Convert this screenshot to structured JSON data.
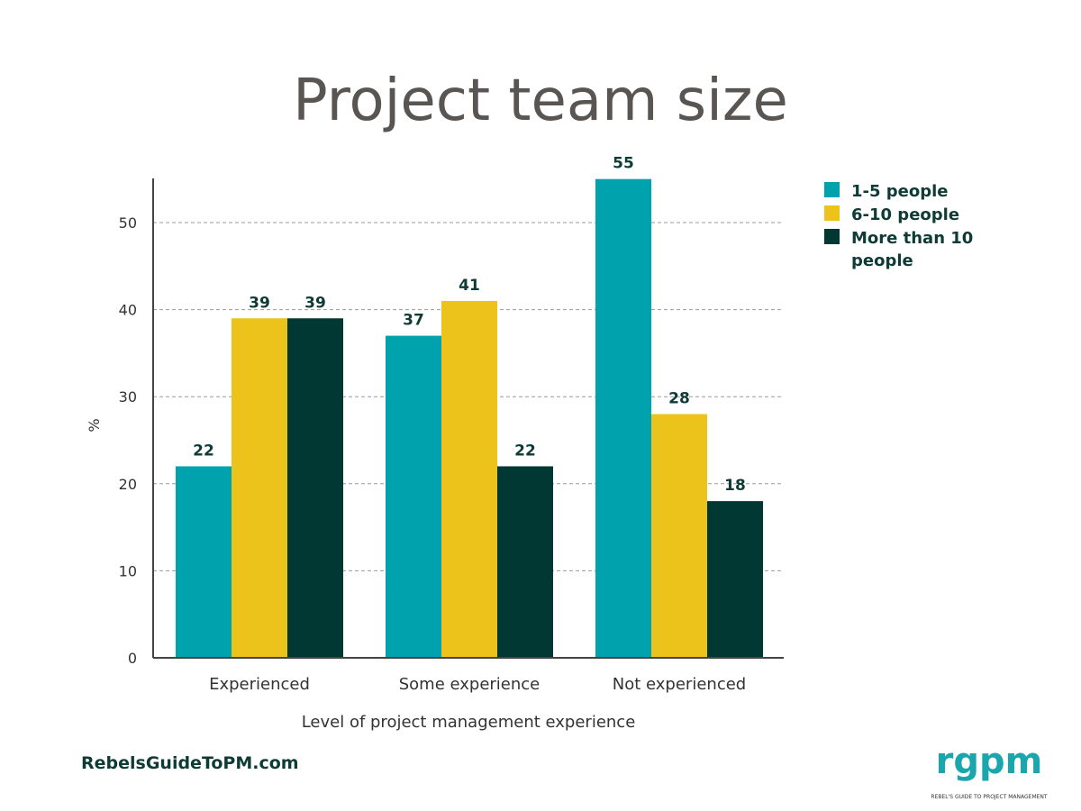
{
  "chart_data": {
    "type": "bar",
    "title": "Project team size",
    "xlabel": "Level of project management experience",
    "ylabel": "%",
    "ylim": [
      0,
      55
    ],
    "yticks": [
      0,
      10,
      20,
      30,
      40,
      50
    ],
    "grid": true,
    "legend_placement": "right",
    "categories": [
      "Experienced",
      "Some experience",
      "Not experienced"
    ],
    "series": [
      {
        "name": "1-5 people",
        "values": [
          22,
          37,
          55
        ],
        "color": "#00a3ad"
      },
      {
        "name": "6-10 people",
        "values": [
          39,
          41,
          28
        ],
        "color": "#ecc31a"
      },
      {
        "name": "More than 10 people",
        "values": [
          39,
          22,
          18
        ],
        "color": "#023833"
      }
    ]
  },
  "footer": {
    "website": "RebelsGuideToPM.com",
    "logo_text": "rgpm",
    "logo_tagline": "REBEL'S GUIDE TO PROJECT MANAGEMENT"
  }
}
